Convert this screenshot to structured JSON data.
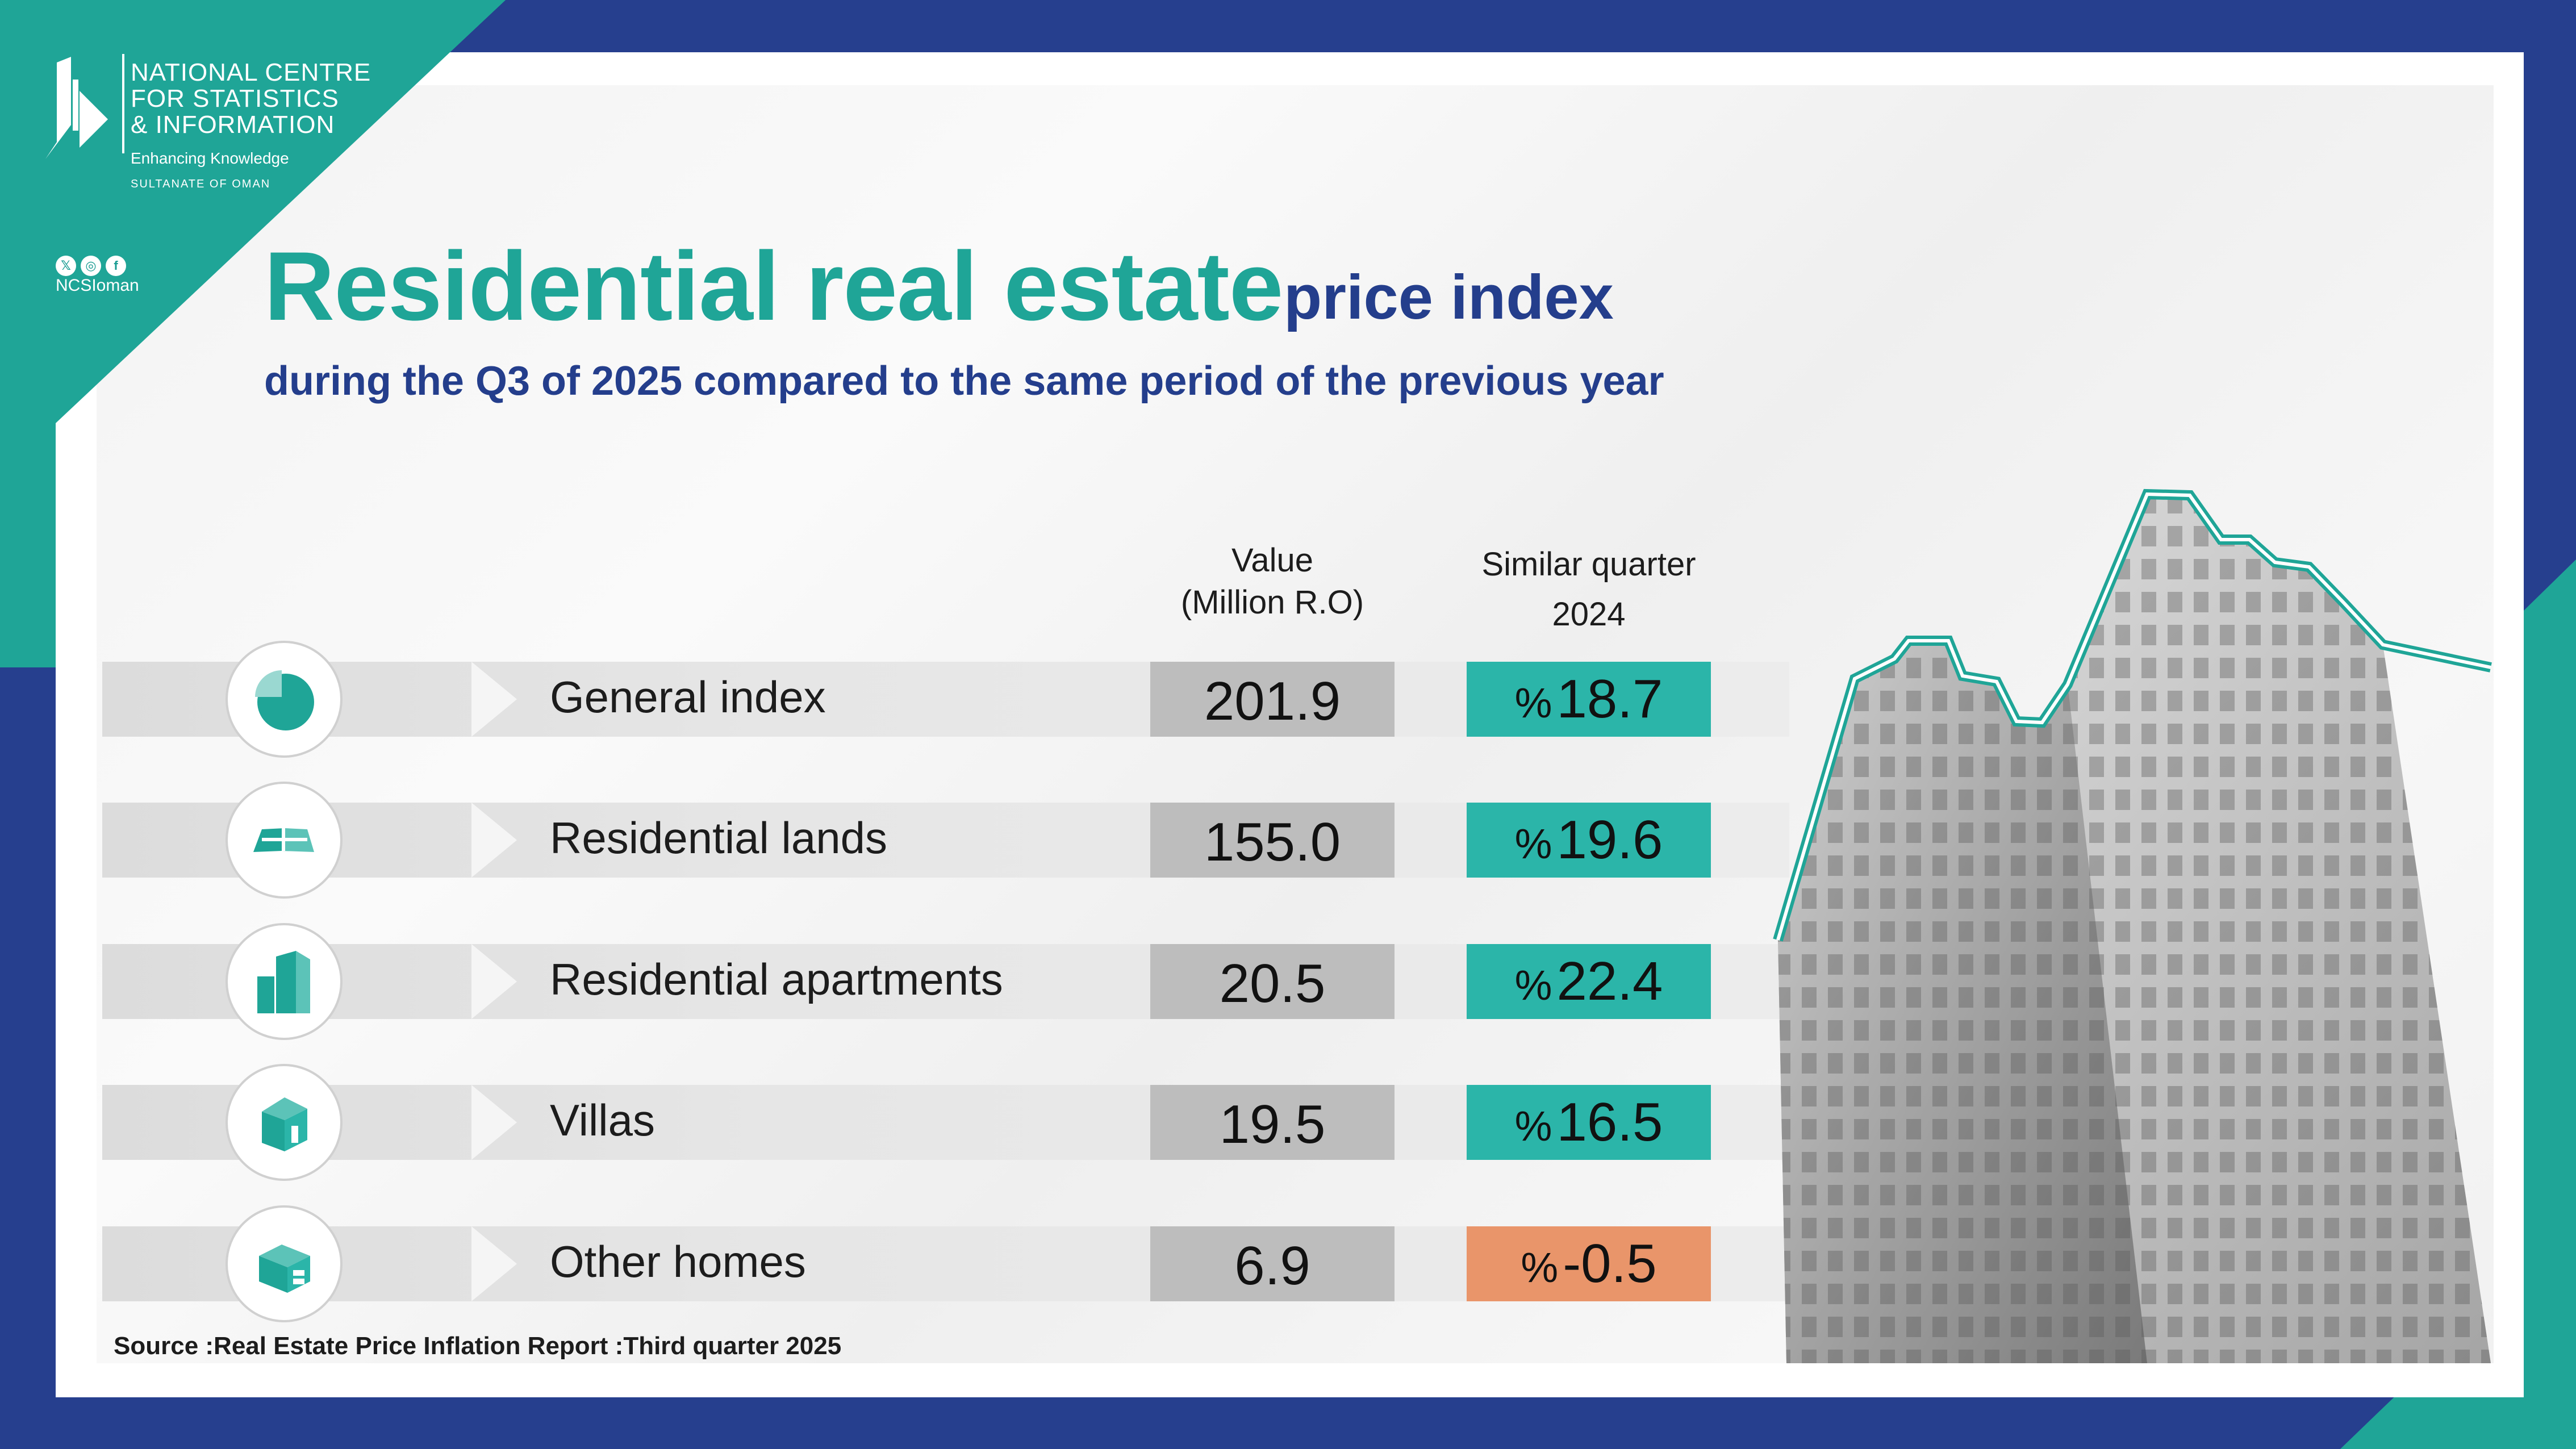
{
  "logo": {
    "org_line1": "NATIONAL CENTRE",
    "org_line2": "FOR STATISTICS",
    "org_line3": "& INFORMATION",
    "tagline": "Enhancing Knowledge",
    "country": "SULTANATE OF OMAN"
  },
  "social": {
    "icons": [
      "x-icon",
      "instagram-icon",
      "facebook-icon"
    ],
    "handle": "NCSIoman"
  },
  "title": {
    "main": "Residential real estate",
    "secondary": "price index",
    "subtitle": "during the Q3 of 2025 compared to the same period of the previous year"
  },
  "headers": {
    "value_line1": "Value",
    "value_line2": "(Million R.O)",
    "similar_line1": "Similar quarter",
    "similar_line2": "2024"
  },
  "rows": [
    {
      "label": "General index",
      "value": "201.9",
      "percent_sign": "%",
      "percent": "18.7",
      "icon": "pie-chart-icon",
      "trend": "up"
    },
    {
      "label": "Residential lands",
      "value": "155.0",
      "percent_sign": "%",
      "percent": "19.6",
      "icon": "land-map-icon",
      "trend": "up"
    },
    {
      "label": "Residential apartments",
      "value": "20.5",
      "percent_sign": "%",
      "percent": "22.4",
      "icon": "apartment-building-icon",
      "trend": "up"
    },
    {
      "label": "Villas",
      "value": "19.5",
      "percent_sign": "%",
      "percent": "16.5",
      "icon": "villa-icon",
      "trend": "up"
    },
    {
      "label": "Other homes",
      "value": "6.9",
      "percent_sign": "%",
      "percent": "-0.5",
      "icon": "other-homes-icon",
      "trend": "down"
    }
  ],
  "source": "Source :Real Estate Price Inflation Report :Third quarter 2025",
  "colors": {
    "navy": "#263f8e",
    "teal": "#1fa597",
    "positive": "#2bb5a9",
    "negative": "#e9956a",
    "value_box": "#bdbdbd"
  }
}
